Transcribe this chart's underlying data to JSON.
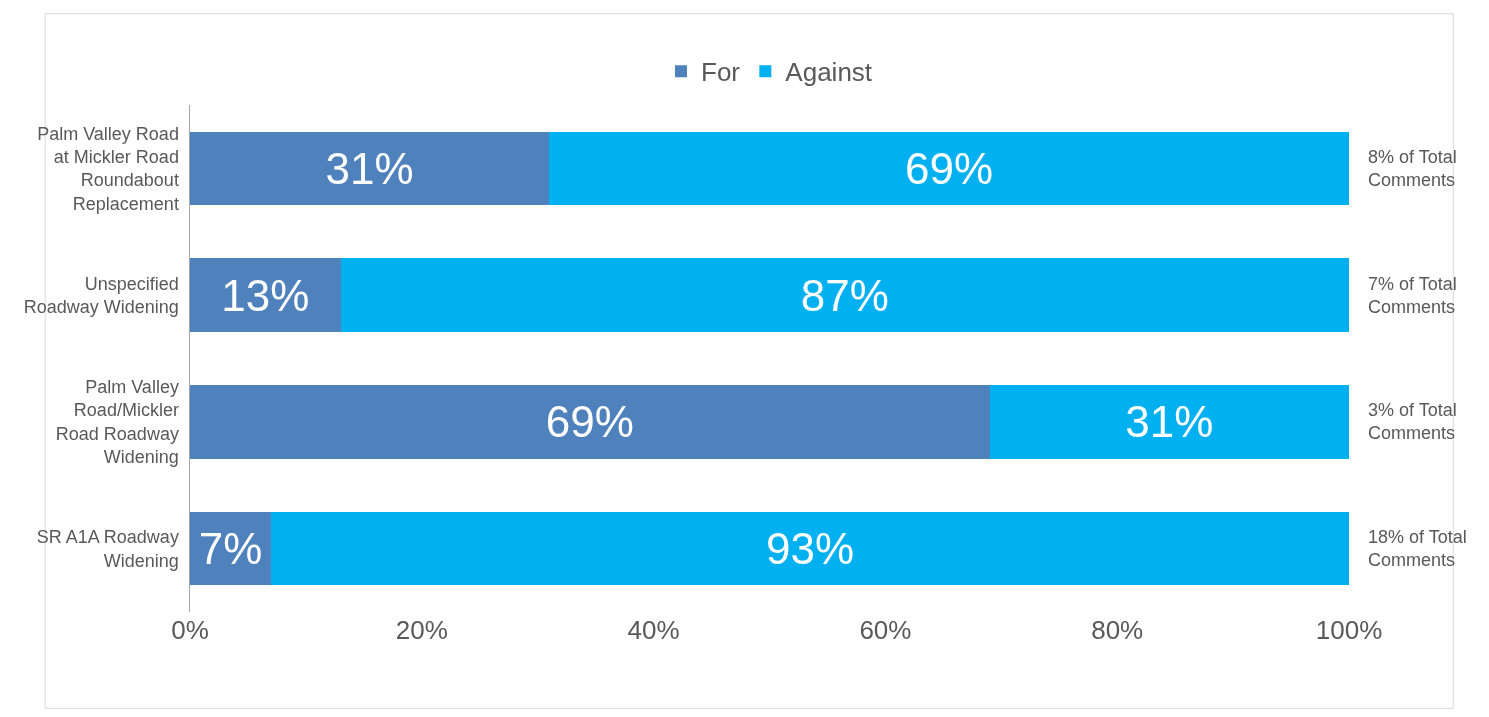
{
  "chart_data": {
    "type": "bar",
    "orientation": "horizontal",
    "stacked": true,
    "categories": [
      "Palm Valley Road at Mickler Road Roundabout Replacement",
      "Unspecified Roadway Widening",
      "Palm Valley Road/Mickler Road Roadway Widening",
      "SR A1A Roadway Widening"
    ],
    "series": [
      {
        "name": "For",
        "color": "#4f81bd",
        "values": [
          31,
          13,
          69,
          7
        ],
        "value_labels": [
          "31%",
          "13%",
          "69%",
          "7%"
        ]
      },
      {
        "name": "Against",
        "color": "#00b0f0",
        "values": [
          69,
          87,
          31,
          93
        ],
        "value_labels": [
          "69%",
          "87%",
          "31%",
          "93%"
        ]
      }
    ],
    "xlim": [
      0,
      100
    ],
    "xticks": [
      {
        "value": 0,
        "label": "0%"
      },
      {
        "value": 20,
        "label": "20%"
      },
      {
        "value": 40,
        "label": "40%"
      },
      {
        "value": 60,
        "label": "60%"
      },
      {
        "value": 80,
        "label": "80%"
      },
      {
        "value": 100,
        "label": "100%"
      }
    ],
    "annotations": [
      "8% of Total Comments",
      "7% of Total Comments",
      "3% of Total Comments",
      "18% of Total Comments"
    ],
    "grid": false,
    "legend": "top"
  }
}
